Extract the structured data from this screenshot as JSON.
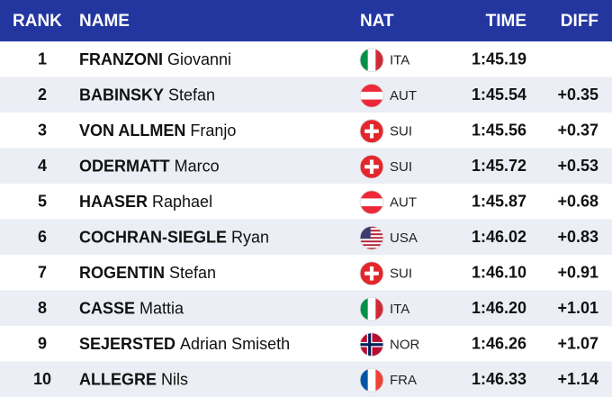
{
  "header": {
    "rank": "RANK",
    "name": "NAME",
    "nat": "NAT",
    "time": "TIME",
    "diff": "DIFF"
  },
  "rows": [
    {
      "rank": 1,
      "surname": "FRANZONI",
      "given": "Giovanni",
      "nat": "ITA",
      "time": "1:45.19"
    },
    {
      "rank": 2,
      "surname": "BABINSKY",
      "given": "Stefan",
      "nat": "AUT",
      "time": "1:45.54",
      "diff": "+0.35"
    },
    {
      "rank": 3,
      "surname": "VON ALLMEN",
      "given": "Franjo",
      "nat": "SUI",
      "time": "1:45.56",
      "diff": "+0.37"
    },
    {
      "rank": 4,
      "surname": "ODERMATT",
      "given": "Marco",
      "nat": "SUI",
      "time": "1:45.72",
      "diff": "+0.53"
    },
    {
      "rank": 5,
      "surname": "HAASER",
      "given": "Raphael",
      "nat": "AUT",
      "time": "1:45.87",
      "diff": "+0.68"
    },
    {
      "rank": 6,
      "surname": "COCHRAN-SIEGLE",
      "given": "Ryan",
      "nat": "USA",
      "time": "1:46.02",
      "diff": "+0.83"
    },
    {
      "rank": 7,
      "surname": "ROGENTIN",
      "given": "Stefan",
      "nat": "SUI",
      "time": "1:46.10",
      "diff": "+0.91"
    },
    {
      "rank": 8,
      "surname": "CASSE",
      "given": "Mattia",
      "nat": "ITA",
      "time": "1:46.20",
      "diff": "+1.01"
    },
    {
      "rank": 9,
      "surname": "SEJERSTED",
      "given": "Adrian Smiseth",
      "nat": "NOR",
      "time": "1:46.26",
      "diff": "+1.07"
    },
    {
      "rank": 10,
      "surname": "ALLEGRE",
      "given": "Nils",
      "nat": "FRA",
      "time": "1:46.33",
      "diff": "+1.14"
    }
  ]
}
